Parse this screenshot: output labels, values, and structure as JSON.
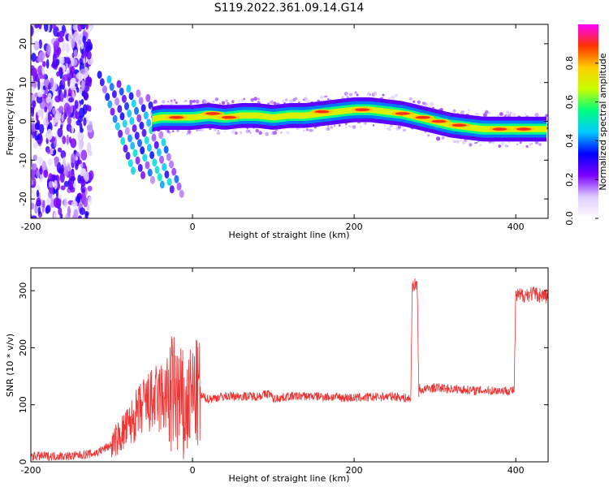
{
  "title": "S119.2022.361.09.14.G14",
  "chart_data": [
    {
      "type": "heatmap",
      "xlabel": "Height of straight line (km)",
      "ylabel": "Frequency (Hz)",
      "xlim": [
        -200,
        440
      ],
      "ylim": [
        -25,
        25
      ],
      "x_ticks": [
        -200,
        0,
        200,
        400
      ],
      "y_ticks": [
        -20,
        -10,
        0,
        10,
        20
      ],
      "colorbar": {
        "label": "Normalized spectral amplitude",
        "range": [
          0,
          1
        ],
        "ticks": [
          "0.0",
          "0.2",
          "0.4",
          "0.6",
          "0.8"
        ],
        "colors": [
          "#ffffff",
          "#ddccff",
          "#7a00ff",
          "#0000ff",
          "#00c8ff",
          "#00ff80",
          "#c8ff00",
          "#ffcc00",
          "#ff3300",
          "#ff00ff"
        ]
      },
      "ridge": {
        "x": [
          -60,
          -40,
          -20,
          0,
          20,
          40,
          60,
          80,
          100,
          120,
          140,
          160,
          180,
          200,
          220,
          240,
          260,
          280,
          300,
          320,
          340,
          360,
          380,
          400,
          420,
          440
        ],
        "y": [
          0.0,
          1.0,
          1.0,
          1.0,
          1.5,
          1.0,
          1.5,
          1.5,
          1.0,
          1.5,
          1.5,
          2.0,
          2.5,
          3.0,
          3.0,
          2.5,
          2.0,
          1.0,
          0.0,
          -1.0,
          -1.5,
          -2.0,
          -2.0,
          -2.0,
          -2.0,
          -2.0
        ]
      },
      "peaks": [
        {
          "x": -20,
          "y": 1.0
        },
        {
          "x": 25,
          "y": 2.0
        },
        {
          "x": 45,
          "y": 1.0
        },
        {
          "x": 160,
          "y": 2.5
        },
        {
          "x": 210,
          "y": 3.0
        },
        {
          "x": 260,
          "y": 2.0
        },
        {
          "x": 285,
          "y": 1.0
        },
        {
          "x": 305,
          "y": 0.0
        },
        {
          "x": 330,
          "y": -1.0
        },
        {
          "x": 380,
          "y": -2.0
        },
        {
          "x": 410,
          "y": -2.0
        }
      ]
    },
    {
      "type": "line",
      "xlabel": "Height of straight line (km)",
      "ylabel": "SNR (10 * v/v)",
      "xlim": [
        -200,
        440
      ],
      "ylim": [
        0,
        340
      ],
      "x_ticks": [
        -200,
        0,
        200,
        400
      ],
      "y_ticks": [
        0,
        100,
        200,
        300
      ],
      "series": [
        {
          "color": "#ee3333",
          "x": [
            -200,
            -150,
            -120,
            -100,
            -80,
            -60,
            -40,
            -20,
            -10,
            0,
            10,
            20,
            40,
            60,
            80,
            95,
            100,
            120,
            150,
            200,
            250,
            270,
            272,
            278,
            280,
            300,
            350,
            398,
            400,
            420,
            440
          ],
          "y": [
            10,
            10,
            15,
            30,
            60,
            100,
            110,
            120,
            80,
            120,
            115,
            110,
            115,
            115,
            115,
            120,
            110,
            115,
            115,
            112,
            115,
            110,
            310,
            310,
            125,
            130,
            125,
            125,
            290,
            295,
            290
          ]
        }
      ]
    }
  ]
}
